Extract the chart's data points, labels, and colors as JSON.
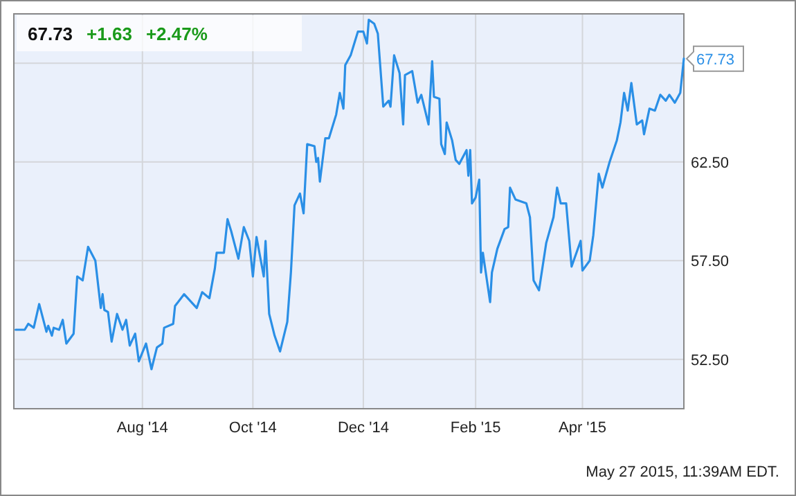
{
  "chart_data": {
    "type": "line",
    "title": "67.73",
    "subtitle": "+1.63 +2.47%",
    "annotations": [
      "May 27 2015, 11:39AM EDT.",
      {
        "text": "67.73",
        "x": "2015-05-27",
        "y": 67.73
      }
    ],
    "x": [
      "2014-05-23",
      "2014-05-28",
      "2014-05-30",
      "2014-06-02",
      "2014-06-05",
      "2014-06-09",
      "2014-06-10",
      "2014-06-12",
      "2014-06-13",
      "2014-06-16",
      "2014-06-18",
      "2014-06-20",
      "2014-06-24",
      "2014-06-26",
      "2014-06-29",
      "2014-07-02",
      "2014-07-06",
      "2014-07-09",
      "2014-07-10",
      "2014-07-11",
      "2014-07-13",
      "2014-07-15",
      "2014-07-18",
      "2014-07-21",
      "2014-07-23",
      "2014-07-25",
      "2014-07-28",
      "2014-07-30",
      "2014-08-03",
      "2014-08-06",
      "2014-08-09",
      "2014-08-12",
      "2014-08-13",
      "2014-08-18",
      "2014-08-19",
      "2014-08-24",
      "2014-08-31",
      "2014-09-03",
      "2014-09-07",
      "2014-09-10",
      "2014-09-11",
      "2014-09-15",
      "2014-09-17",
      "2014-09-19",
      "2014-09-23",
      "2014-09-26",
      "2014-09-29",
      "2014-10-01",
      "2014-10-03",
      "2014-10-07",
      "2014-10-08",
      "2014-10-10",
      "2014-10-13",
      "2014-10-16",
      "2014-10-20",
      "2014-10-22",
      "2014-10-24",
      "2014-10-27",
      "2014-10-29",
      "2014-10-31",
      "2014-11-04",
      "2014-11-05",
      "2014-11-06",
      "2014-11-07",
      "2014-11-10",
      "2014-11-12",
      "2014-11-16",
      "2014-11-18",
      "2014-11-20",
      "2014-11-21",
      "2014-11-24",
      "2014-11-28",
      "2014-12-01",
      "2014-12-03",
      "2014-12-04",
      "2014-12-07",
      "2014-12-09",
      "2014-12-12",
      "2014-12-15",
      "2014-12-16",
      "2014-12-18",
      "2014-12-21",
      "2014-12-23",
      "2014-12-24",
      "2014-12-28",
      "2014-12-31",
      "2015-01-02",
      "2015-01-06",
      "2015-01-08",
      "2015-01-09",
      "2015-01-12",
      "2015-01-13",
      "2015-01-15",
      "2015-01-16",
      "2015-01-19",
      "2015-01-21",
      "2015-01-23",
      "2015-01-27",
      "2015-01-28",
      "2015-01-29",
      "2015-01-30",
      "2015-02-01",
      "2015-02-03",
      "2015-02-04",
      "2015-02-05",
      "2015-02-09",
      "2015-02-10",
      "2015-02-13",
      "2015-02-17",
      "2015-02-19",
      "2015-02-20",
      "2015-02-23",
      "2015-02-26",
      "2015-03-01",
      "2015-03-03",
      "2015-03-05",
      "2015-03-08",
      "2015-03-12",
      "2015-03-16",
      "2015-03-18",
      "2015-03-20",
      "2015-03-23",
      "2015-03-26",
      "2015-03-31",
      "2015-04-01",
      "2015-04-05",
      "2015-04-07",
      "2015-04-10",
      "2015-04-12",
      "2015-04-16",
      "2015-04-20",
      "2015-04-22",
      "2015-04-24",
      "2015-04-26",
      "2015-04-28",
      "2015-05-01",
      "2015-05-04",
      "2015-05-05",
      "2015-05-08",
      "2015-05-11",
      "2015-05-14",
      "2015-05-17",
      "2015-05-19",
      "2015-05-22",
      "2015-05-25",
      "2015-05-27"
    ],
    "series": [
      {
        "color": "#2a8fe6",
        "values": [
          54.0,
          54.0,
          54.3,
          54.1,
          55.3,
          53.9,
          54.2,
          53.7,
          54.1,
          54.0,
          54.5,
          53.3,
          53.8,
          56.7,
          56.5,
          58.2,
          57.5,
          55.1,
          55.8,
          55.0,
          54.9,
          53.4,
          54.8,
          54.0,
          54.5,
          53.2,
          53.8,
          52.4,
          53.3,
          52.0,
          53.1,
          53.3,
          54.1,
          54.3,
          55.2,
          55.8,
          55.1,
          55.9,
          55.6,
          57.1,
          57.9,
          57.9,
          59.6,
          59.0,
          57.6,
          59.2,
          58.5,
          56.7,
          58.7,
          56.7,
          58.5,
          54.8,
          53.7,
          52.9,
          54.4,
          56.9,
          60.3,
          60.9,
          59.9,
          63.4,
          63.3,
          62.5,
          62.7,
          61.5,
          63.7,
          63.7,
          64.9,
          66.0,
          65.2,
          67.4,
          67.9,
          69.1,
          69.1,
          68.5,
          69.7,
          69.5,
          69.0,
          65.3,
          65.6,
          65.3,
          67.9,
          67.0,
          64.4,
          66.9,
          67.1,
          65.5,
          65.9,
          64.4,
          67.6,
          65.8,
          65.7,
          63.4,
          62.9,
          64.5,
          63.6,
          62.6,
          62.4,
          63.1,
          61.8,
          63.1,
          60.4,
          60.7,
          61.6,
          56.9,
          57.9,
          55.4,
          56.9,
          58.1,
          59.1,
          59.2,
          61.2,
          60.6,
          60.5,
          60.4,
          59.7,
          56.5,
          56.0,
          58.4,
          59.7,
          61.2,
          60.4,
          60.4,
          57.2,
          58.5,
          57.0,
          57.5,
          58.8,
          61.9,
          61.2,
          62.5,
          63.6,
          64.5,
          66.0,
          65.1,
          66.5,
          64.4,
          64.6,
          63.9,
          65.2,
          65.1,
          65.9,
          65.6,
          65.9,
          65.5,
          66.0,
          67.73
        ]
      }
    ],
    "xlim": [
      "2014-05-22",
      "2015-05-27"
    ],
    "xticks": [
      {
        "value": "2014-08-01",
        "label": "Aug '14"
      },
      {
        "value": "2014-10-01",
        "label": "Oct '14"
      },
      {
        "value": "2014-12-01",
        "label": "Dec '14"
      },
      {
        "value": "2015-02-01",
        "label": "Feb '15"
      },
      {
        "value": "2015-04-01",
        "label": "Apr '15"
      }
    ],
    "ylim": [
      50,
      70
    ],
    "yticks": [
      {
        "value": 52.5,
        "label": "52.50"
      },
      {
        "value": 57.5,
        "label": "57.50"
      },
      {
        "value": 62.5,
        "label": "62.50"
      },
      {
        "value": 67.5,
        "label": null
      }
    ],
    "grid": true,
    "marker": "none",
    "line_style": "solid"
  }
}
